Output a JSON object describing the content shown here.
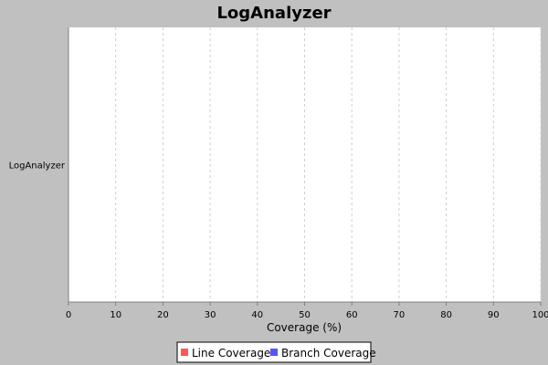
{
  "chart_data": {
    "type": "bar",
    "orientation": "horizontal",
    "title": "LogAnalyzer",
    "categories": [
      "LogAnalyzer"
    ],
    "series": [
      {
        "name": "Line Coverage",
        "color": "#ff5555",
        "values": [
          0
        ]
      },
      {
        "name": "Branch Coverage",
        "color": "#5555ff",
        "values": [
          0
        ]
      }
    ],
    "xlabel": "Coverage (%)",
    "ylabel": "",
    "xlim": [
      0,
      100
    ],
    "x_ticks": [
      0,
      10,
      20,
      30,
      40,
      50,
      60,
      70,
      80,
      90,
      100
    ],
    "grid": true,
    "legend_position": "bottom"
  },
  "colors": {
    "background": "#c0c0c0",
    "plot_background": "#ffffff",
    "gridline": "#d0d0d0",
    "axis": "#808080"
  }
}
